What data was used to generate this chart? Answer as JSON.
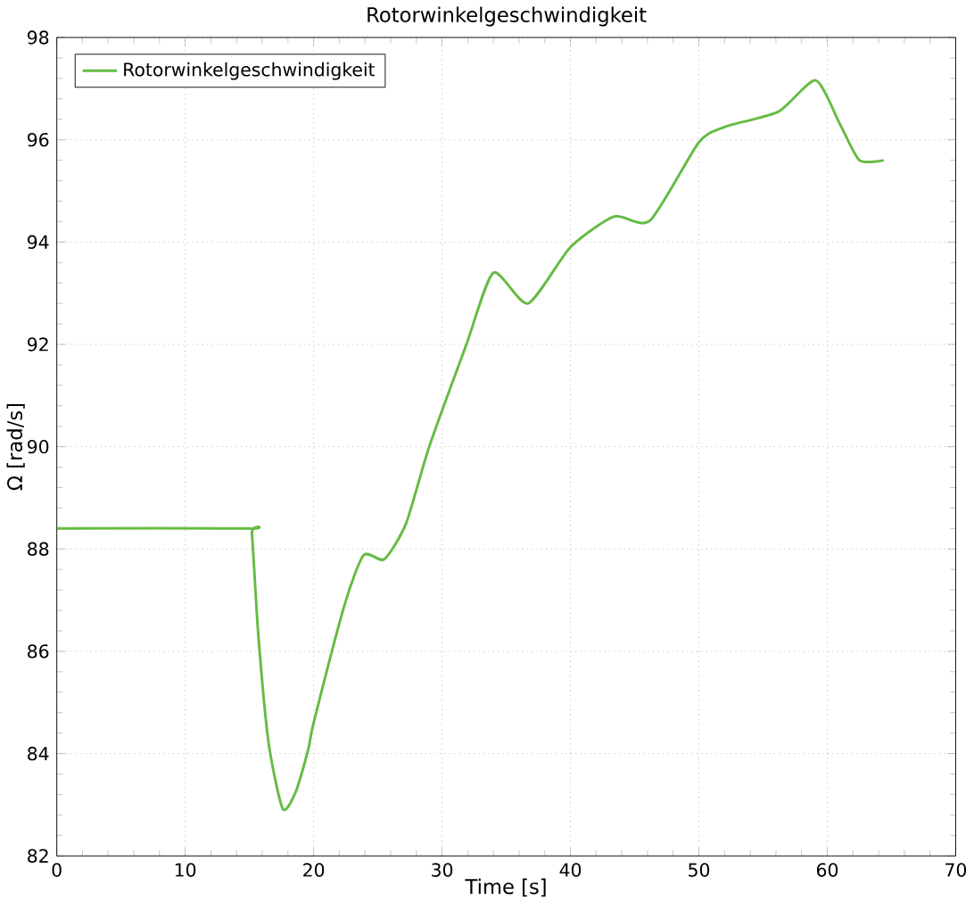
{
  "chart_data": {
    "type": "line",
    "title": "Rotorwinkelgeschwindigkeit",
    "xlabel": "Time [s]",
    "ylabel": "Ω [rad/s]",
    "xlim": [
      0,
      70
    ],
    "ylim": [
      82,
      98
    ],
    "xticks": [
      0,
      10,
      20,
      30,
      40,
      50,
      60,
      70
    ],
    "yticks": [
      82,
      84,
      86,
      88,
      90,
      92,
      94,
      96,
      98
    ],
    "grid": true,
    "legend": "top left",
    "series": [
      {
        "name": "Rotorwinkelgeschwindigkeit",
        "color": "#66bb44",
        "x": [
          0,
          15,
          15.2,
          15.7,
          16.5,
          17.6,
          18.6,
          19.6,
          20,
          22.4,
          23.9,
          25.5,
          27.2,
          29,
          31.9,
          34.0,
          36.7,
          40,
          43.4,
          46.2,
          50,
          52,
          56.2,
          59.1,
          61,
          62.5,
          64.4
        ],
        "values": [
          88.4,
          88.4,
          88.3,
          86.3,
          84.2,
          82.92,
          83.25,
          84.1,
          84.6,
          86.9,
          87.88,
          87.8,
          88.5,
          90.0,
          92.0,
          93.4,
          92.8,
          93.9,
          94.5,
          94.42,
          95.95,
          96.25,
          96.55,
          97.16,
          96.3,
          95.6,
          95.6
        ]
      }
    ]
  }
}
